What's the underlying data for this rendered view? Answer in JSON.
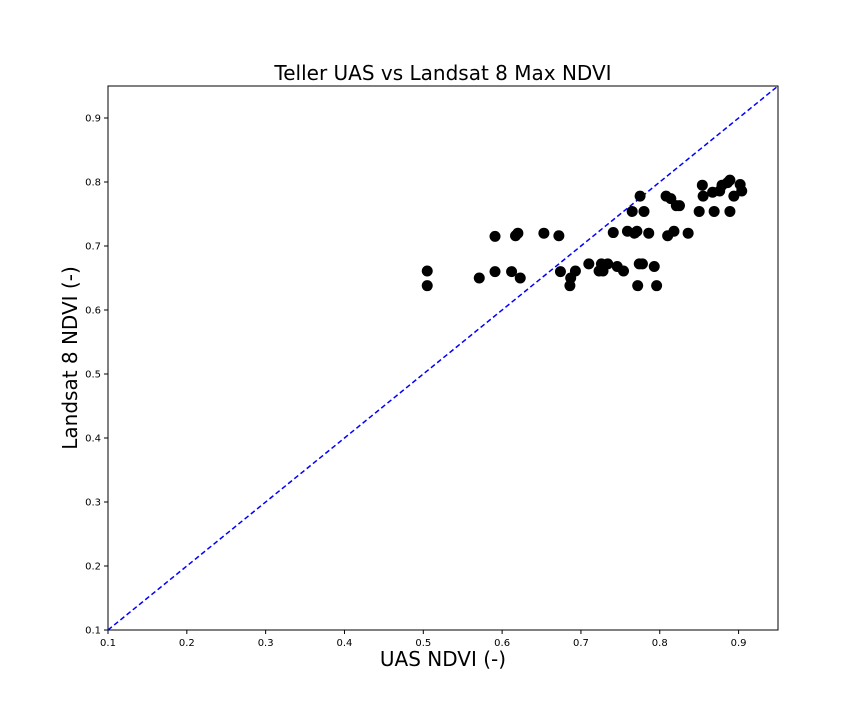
{
  "chart_data": {
    "type": "scatter",
    "title": "Teller UAS vs Landsat 8 Max NDVI",
    "xlabel": "UAS NDVI (-)",
    "ylabel": "Landsat 8 NDVI (-)",
    "xlim": [
      0.1,
      0.95
    ],
    "ylim": [
      0.1,
      0.95
    ],
    "xticks": [
      "0.1",
      "0.2",
      "0.3",
      "0.4",
      "0.5",
      "0.6",
      "0.7",
      "0.8",
      "0.9"
    ],
    "yticks": [
      "0.1",
      "0.2",
      "0.3",
      "0.4",
      "0.5",
      "0.6",
      "0.7",
      "0.8",
      "0.9"
    ],
    "grid": false,
    "legend": "none",
    "reference_line": {
      "style": "dashed",
      "color": "#0000ff",
      "from": [
        0.1,
        0.1
      ],
      "to": [
        0.95,
        0.95
      ]
    },
    "marker_color": "#000000",
    "series": [
      {
        "points": [
          [
            0.505,
            0.661
          ],
          [
            0.505,
            0.638
          ],
          [
            0.571,
            0.65
          ],
          [
            0.591,
            0.715
          ],
          [
            0.591,
            0.66
          ],
          [
            0.612,
            0.66
          ],
          [
            0.617,
            0.716
          ],
          [
            0.62,
            0.72
          ],
          [
            0.623,
            0.65
          ],
          [
            0.653,
            0.72
          ],
          [
            0.672,
            0.716
          ],
          [
            0.674,
            0.66
          ],
          [
            0.686,
            0.638
          ],
          [
            0.687,
            0.65
          ],
          [
            0.693,
            0.661
          ],
          [
            0.71,
            0.672
          ],
          [
            0.723,
            0.661
          ],
          [
            0.726,
            0.672
          ],
          [
            0.728,
            0.661
          ],
          [
            0.734,
            0.672
          ],
          [
            0.741,
            0.721
          ],
          [
            0.746,
            0.668
          ],
          [
            0.754,
            0.661
          ],
          [
            0.759,
            0.723
          ],
          [
            0.765,
            0.754
          ],
          [
            0.768,
            0.72
          ],
          [
            0.771,
            0.723
          ],
          [
            0.772,
            0.638
          ],
          [
            0.774,
            0.672
          ],
          [
            0.775,
            0.778
          ],
          [
            0.778,
            0.672
          ],
          [
            0.78,
            0.754
          ],
          [
            0.786,
            0.72
          ],
          [
            0.793,
            0.668
          ],
          [
            0.796,
            0.638
          ],
          [
            0.808,
            0.778
          ],
          [
            0.81,
            0.716
          ],
          [
            0.814,
            0.774
          ],
          [
            0.818,
            0.723
          ],
          [
            0.821,
            0.763
          ],
          [
            0.825,
            0.763
          ],
          [
            0.836,
            0.72
          ],
          [
            0.85,
            0.754
          ],
          [
            0.854,
            0.795
          ],
          [
            0.855,
            0.778
          ],
          [
            0.867,
            0.784
          ],
          [
            0.869,
            0.754
          ],
          [
            0.876,
            0.786
          ],
          [
            0.879,
            0.795
          ],
          [
            0.886,
            0.799
          ],
          [
            0.889,
            0.803
          ],
          [
            0.889,
            0.754
          ],
          [
            0.894,
            0.778
          ],
          [
            0.902,
            0.796
          ],
          [
            0.904,
            0.786
          ]
        ]
      }
    ]
  }
}
